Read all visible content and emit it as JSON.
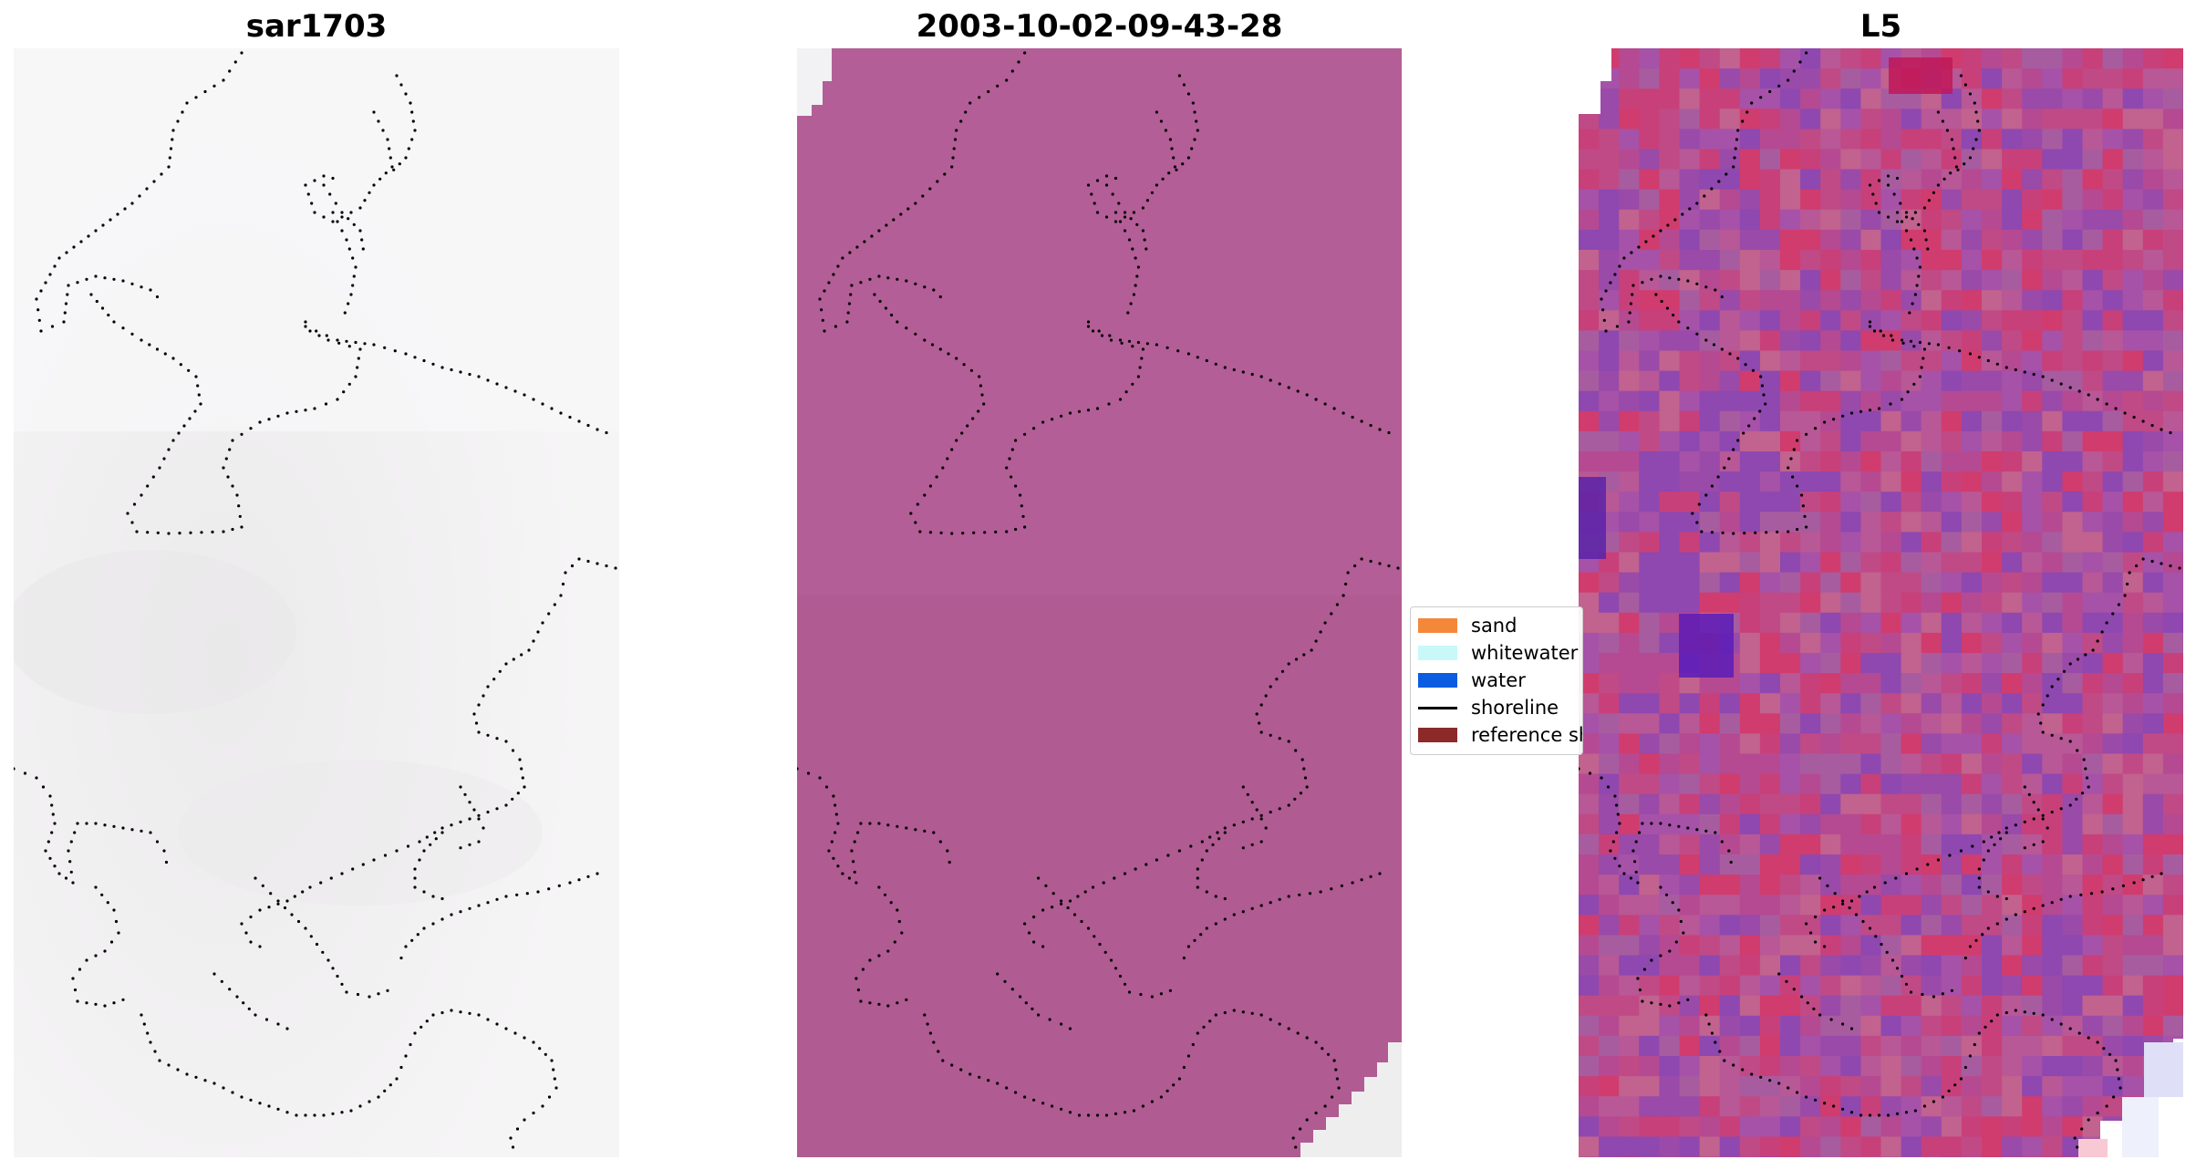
{
  "panels": [
    {
      "title": "sar1703"
    },
    {
      "title": "2003-10-02-09-43-28"
    },
    {
      "title": "L5"
    }
  ],
  "legend": {
    "items": [
      {
        "label": "sand",
        "color": "#f4883a",
        "kind": "patch"
      },
      {
        "label": "whitewater",
        "color": "#c8f8f8",
        "kind": "patch"
      },
      {
        "label": "water",
        "color": "#0a5ce0",
        "kind": "patch"
      },
      {
        "label": "shoreline",
        "color": "#000000",
        "kind": "line"
      },
      {
        "label": "reference shoreline",
        "color": "#8c2a2a",
        "kind": "patch"
      }
    ]
  },
  "colors": {
    "panel1_background": "#f4f2f4",
    "panel2_background": "#b35e96",
    "panel3_background": "#c25a9a",
    "shoreline_dots": "#000000"
  }
}
